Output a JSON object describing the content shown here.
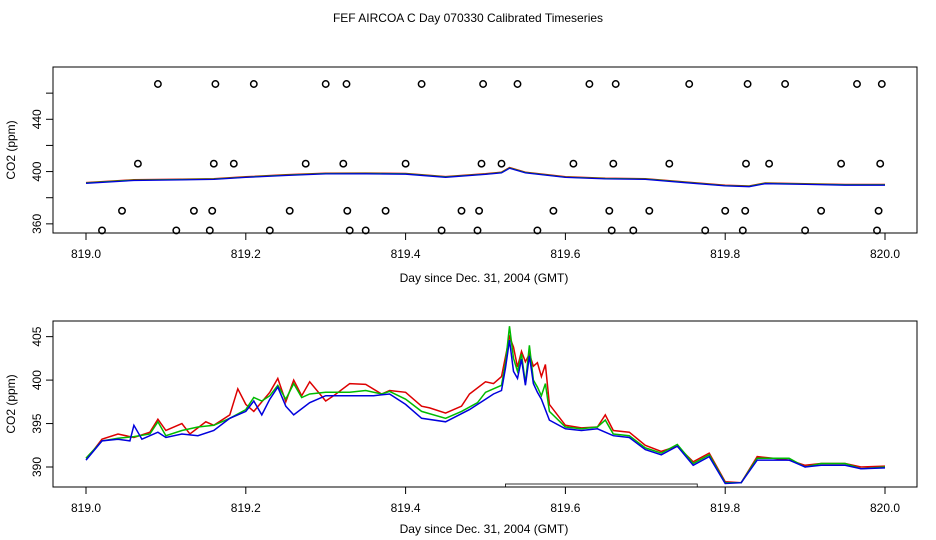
{
  "title": "FEF AIRCOA C  Day 070330  Calibrated Timeseries",
  "chart_data": [
    {
      "type": "line",
      "panel": "top",
      "xlabel": "Day since Dec. 31, 2004 (GMT)",
      "ylabel": "CO2 (ppm)",
      "xlim": [
        818.995,
        820.01
      ],
      "ylim": [
        353,
        480
      ],
      "xticks": [
        819.0,
        819.2,
        819.4,
        819.6,
        819.8,
        820.0
      ],
      "xtick_labels": [
        "819.0",
        "819.2",
        "819.4",
        "819.6",
        "819.8",
        "820.0"
      ],
      "yticks": [
        360,
        380,
        400,
        420,
        440,
        460
      ],
      "ytick_labels": [
        "360",
        "",
        "400",
        "",
        "440",
        ""
      ],
      "series": [
        {
          "name": "red",
          "color": "#dd0000",
          "offset": 0.6
        },
        {
          "name": "green",
          "color": "#00bb00",
          "offset": 0.3
        },
        {
          "name": "blue",
          "color": "#0000dd",
          "offset": 0.0
        }
      ],
      "base_line": {
        "x": [
          819.0,
          819.06,
          819.12,
          819.16,
          819.2,
          819.25,
          819.3,
          819.35,
          819.4,
          819.45,
          819.5,
          819.52,
          819.53,
          819.55,
          819.6,
          819.65,
          819.7,
          819.75,
          819.8,
          819.83,
          819.85,
          819.9,
          819.95,
          820.0
        ],
        "y": [
          391.0,
          393.2,
          393.6,
          394.0,
          395.5,
          397.0,
          398.2,
          398.3,
          398.0,
          395.6,
          397.8,
          399.0,
          402.5,
          399.0,
          395.5,
          394.4,
          394.0,
          391.5,
          389.0,
          388.4,
          390.7,
          390.2,
          389.6,
          389.6
        ]
      },
      "markers": {
        "symbol": "open circle",
        "x": [
          819.02,
          819.045,
          819.065,
          819.09,
          819.113,
          819.135,
          819.155,
          819.158,
          819.16,
          819.162,
          819.185,
          819.21,
          819.23,
          819.255,
          819.275,
          819.3,
          819.322,
          819.326,
          819.327,
          819.33,
          819.35,
          819.375,
          819.4,
          819.42,
          819.445,
          819.47,
          819.49,
          819.492,
          819.495,
          819.497,
          819.52,
          819.54,
          819.565,
          819.585,
          819.61,
          819.63,
          819.655,
          819.658,
          819.66,
          819.663,
          819.685,
          819.705,
          819.73,
          819.755,
          819.775,
          819.8,
          819.822,
          819.825,
          819.826,
          819.828,
          819.855,
          819.875,
          819.9,
          819.92,
          819.945,
          819.965,
          819.99,
          819.992,
          819.994,
          819.996
        ],
        "y": [
          355,
          370,
          406,
          467,
          355,
          370,
          355,
          370,
          406,
          467,
          406,
          467,
          355,
          370,
          406,
          467,
          406,
          467,
          370,
          355,
          355,
          370,
          406,
          467,
          355,
          370,
          355,
          370,
          406,
          467,
          406,
          467,
          355,
          370,
          406,
          467,
          370,
          355,
          406,
          467,
          355,
          370,
          406,
          467,
          355,
          370,
          355,
          370,
          406,
          467,
          406,
          467,
          355,
          370,
          406,
          467,
          355,
          370,
          406,
          467
        ]
      }
    },
    {
      "type": "line",
      "panel": "bottom",
      "xlabel": "Day since Dec. 31, 2004 (GMT)",
      "ylabel": "CO2 (ppm)",
      "xlim": [
        818.995,
        820.01
      ],
      "ylim": [
        387.7,
        406.8
      ],
      "xticks": [
        819.0,
        819.2,
        819.4,
        819.6,
        819.8,
        820.0
      ],
      "xtick_labels": [
        "819.0",
        "819.2",
        "819.4",
        "819.6",
        "819.8",
        "820.0"
      ],
      "yticks": [
        390,
        395,
        400,
        405
      ],
      "ytick_labels": [
        "390",
        "395",
        "400",
        "405"
      ],
      "shaded_interval": [
        819.525,
        819.765
      ],
      "series": [
        {
          "name": "red",
          "color": "#dd0000",
          "x": [
            819.0,
            819.01,
            819.02,
            819.04,
            819.06,
            819.08,
            819.09,
            819.1,
            819.12,
            819.13,
            819.15,
            819.16,
            819.18,
            819.19,
            819.2,
            819.21,
            819.23,
            819.24,
            819.25,
            819.26,
            819.27,
            819.28,
            819.3,
            819.31,
            819.33,
            819.35,
            819.37,
            819.38,
            819.4,
            819.42,
            819.43,
            819.45,
            819.47,
            819.48,
            819.5,
            819.51,
            819.52,
            819.53,
            819.535,
            819.54,
            819.545,
            819.55,
            819.555,
            819.56,
            819.565,
            819.57,
            819.575,
            819.58,
            819.6,
            819.62,
            819.64,
            819.65,
            819.66,
            819.68,
            819.7,
            819.72,
            819.74,
            819.76,
            819.78,
            819.8,
            819.82,
            819.84,
            819.86,
            819.88,
            819.9,
            819.92,
            819.95,
            819.97,
            820.0
          ],
          "y": [
            391.0,
            392.0,
            393.2,
            393.8,
            393.4,
            394.0,
            395.5,
            394.2,
            395.0,
            393.8,
            395.2,
            394.8,
            396.0,
            399.0,
            397.2,
            396.4,
            398.6,
            400.2,
            397.5,
            400.0,
            398.2,
            399.8,
            397.6,
            398.2,
            399.6,
            399.5,
            398.4,
            398.8,
            398.6,
            397.0,
            396.8,
            396.2,
            397.0,
            398.4,
            399.8,
            399.6,
            400.4,
            405.0,
            403.8,
            401.5,
            403.3,
            402.1,
            403.0,
            401.6,
            402.0,
            400.4,
            401.8,
            397.2,
            394.8,
            394.5,
            394.6,
            396.0,
            394.2,
            394.0,
            392.5,
            391.8,
            392.4,
            390.6,
            391.6,
            388.3,
            388.2,
            391.2,
            391.0,
            390.8,
            390.2,
            390.4,
            390.4,
            390.0,
            390.1
          ]
        },
        {
          "name": "green",
          "color": "#00bb00",
          "x": [
            819.0,
            819.02,
            819.04,
            819.06,
            819.08,
            819.09,
            819.1,
            819.12,
            819.14,
            819.16,
            819.18,
            819.2,
            819.21,
            819.22,
            819.23,
            819.24,
            819.25,
            819.26,
            819.27,
            819.28,
            819.3,
            819.33,
            819.35,
            819.37,
            819.38,
            819.4,
            819.42,
            819.45,
            819.47,
            819.49,
            819.5,
            819.51,
            819.52,
            819.525,
            819.53,
            819.535,
            819.54,
            819.545,
            819.55,
            819.555,
            819.56,
            819.565,
            819.57,
            819.575,
            819.58,
            819.6,
            819.62,
            819.64,
            819.65,
            819.66,
            819.68,
            819.7,
            819.72,
            819.74,
            819.76,
            819.78,
            819.8,
            819.82,
            819.84,
            819.86,
            819.88,
            819.9,
            819.92,
            819.95,
            819.97,
            820.0
          ],
          "y": [
            391.0,
            393.0,
            393.3,
            393.5,
            393.8,
            395.2,
            393.6,
            394.2,
            394.6,
            394.8,
            395.6,
            396.6,
            398.0,
            397.6,
            398.2,
            399.4,
            397.8,
            399.6,
            398.0,
            398.4,
            398.6,
            398.6,
            398.8,
            398.4,
            398.7,
            397.8,
            396.4,
            395.6,
            396.4,
            397.4,
            398.6,
            399.0,
            399.4,
            402.0,
            406.2,
            402.5,
            401.0,
            403.0,
            399.6,
            404.0,
            400.0,
            399.2,
            398.2,
            399.6,
            396.4,
            394.6,
            394.4,
            394.6,
            395.4,
            393.8,
            393.6,
            392.2,
            391.6,
            392.6,
            390.4,
            391.4,
            388.2,
            388.2,
            391.0,
            391.0,
            391.0,
            390.0,
            390.4,
            390.4,
            389.8,
            390.0
          ]
        },
        {
          "name": "blue",
          "color": "#0000dd",
          "x": [
            819.0,
            819.02,
            819.04,
            819.055,
            819.06,
            819.07,
            819.09,
            819.1,
            819.12,
            819.14,
            819.16,
            819.18,
            819.2,
            819.21,
            819.22,
            819.23,
            819.24,
            819.25,
            819.26,
            819.28,
            819.3,
            819.33,
            819.36,
            819.38,
            819.4,
            819.42,
            819.45,
            819.48,
            819.5,
            819.51,
            819.52,
            819.525,
            819.53,
            819.535,
            819.54,
            819.545,
            819.55,
            819.555,
            819.56,
            819.565,
            819.57,
            819.58,
            819.6,
            819.62,
            819.64,
            819.66,
            819.68,
            819.7,
            819.72,
            819.74,
            819.76,
            819.78,
            819.8,
            819.82,
            819.84,
            819.86,
            819.88,
            819.9,
            819.92,
            819.95,
            819.97,
            820.0
          ],
          "y": [
            390.8,
            393.0,
            393.2,
            393.0,
            394.8,
            393.2,
            394.0,
            393.4,
            393.8,
            393.6,
            394.2,
            395.6,
            396.4,
            397.6,
            396.0,
            397.8,
            399.2,
            397.0,
            396.0,
            397.4,
            398.2,
            398.2,
            398.2,
            398.4,
            397.2,
            395.6,
            395.2,
            396.6,
            397.8,
            398.4,
            398.8,
            401.4,
            404.6,
            401.0,
            400.2,
            402.4,
            399.4,
            402.8,
            399.6,
            398.6,
            397.8,
            395.4,
            394.4,
            394.2,
            394.4,
            393.6,
            393.4,
            392.0,
            391.4,
            392.4,
            390.2,
            391.2,
            388.1,
            388.2,
            390.8,
            390.8,
            390.8,
            390.0,
            390.2,
            390.2,
            389.8,
            389.9
          ]
        }
      ]
    }
  ]
}
